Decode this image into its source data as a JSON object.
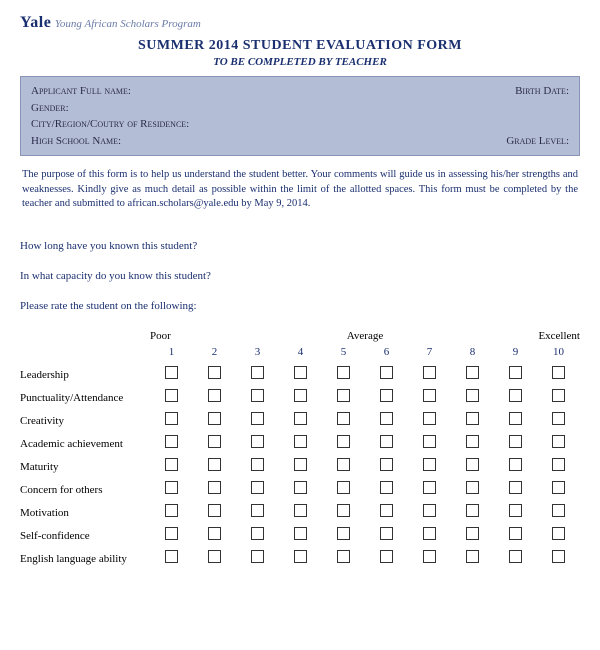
{
  "header": {
    "brand": "Yale",
    "program": "Young African Scholars Program"
  },
  "title": {
    "main": "SUMMER 2014 STUDENT EVALUATION FORM",
    "sub": "TO BE COMPLETED BY TEACHER"
  },
  "info": {
    "applicant_label": "Applicant Full name:",
    "birth_label": "Birth Date:",
    "gender_label": "Gender:",
    "city_label": "City/Region/Coutry of Residence:",
    "school_label": "High School Name:",
    "grade_label": "Grade Level:"
  },
  "purpose": "The purpose of this form is to help us understand the student better. Your comments will guide us in assessing his/her strengths and weaknesses. Kindly give as much detail as possible within the limit of the allotted spaces. This form must be completed by the teacher and submitted to african.scholars@yale.edu by May 9, 2014.",
  "questions": {
    "q1": "How long have you known this student?",
    "q2": "In what capacity do you know this student?",
    "q3": "Please rate the student on the following:"
  },
  "scale": {
    "poor": "Poor",
    "average": "Average",
    "excellent": "Excellent",
    "numbers": [
      "1",
      "2",
      "3",
      "4",
      "5",
      "6",
      "7",
      "8",
      "9",
      "10"
    ]
  },
  "criteria": [
    "Leadership",
    "Punctuality/Attendance",
    "Creativity",
    "Academic achievement",
    "Maturity",
    "Concern for others",
    "Motivation",
    "Self-confidence",
    "English language ability"
  ],
  "colors": {
    "primary_text": "#1a2f6f",
    "info_bg": "#b4bdd6",
    "program_text": "#6a7ba8"
  }
}
